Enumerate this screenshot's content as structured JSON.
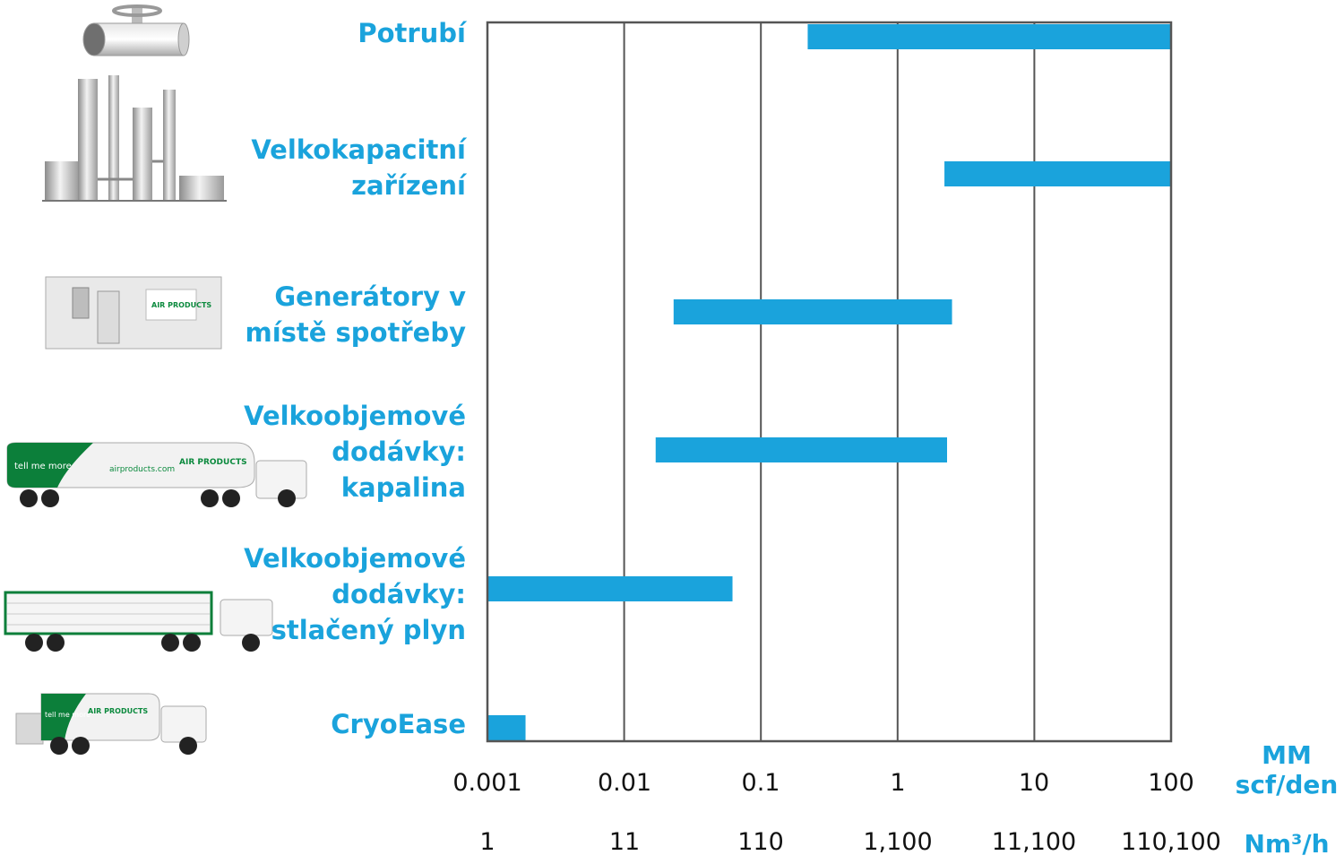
{
  "chart_data": {
    "type": "bar",
    "orientation": "horizontal-range",
    "scale": "log",
    "xlim": [
      0.001,
      100
    ],
    "categories": [
      "Potrubí",
      "Velkokapacitní\nzařízení",
      "Generátory v\nmístě spotřeby",
      "Velkoobjemové\ndodávky:\nkapalina",
      "Velkoobjemové\ndodávky:\nstlačený plyn",
      "CryoEase"
    ],
    "ranges": [
      {
        "category": "Potrubí",
        "start": 0.22,
        "end": 100
      },
      {
        "category": "Velkokapacitní zařízení",
        "start": 2.2,
        "end": 100
      },
      {
        "category": "Generátory v místě spotřeby",
        "start": 0.023,
        "end": 2.5
      },
      {
        "category": "Velkoobjemové dodávky: kapalina",
        "start": 0.017,
        "end": 2.3
      },
      {
        "category": "Velkoobjemové dodávky: stlačený plyn",
        "start": 0.001,
        "end": 0.062
      },
      {
        "category": "CryoEase",
        "start": 0.001,
        "end": 0.0019
      }
    ],
    "ticks_primary": [
      "0.001",
      "0.01",
      "0.1",
      "1",
      "10",
      "100"
    ],
    "ticks_secondary": [
      "1",
      "11",
      "110",
      "1,100",
      "11,100",
      "110,100"
    ],
    "unit_primary": "MM\nscf/den",
    "unit_secondary": "Nm³/h",
    "grid": true
  },
  "colors": {
    "bar": "#1aa3dc",
    "grid": "#555555",
    "label": "#1aa3dc",
    "tick": "#111111"
  },
  "icons": [
    "pipeline-icon",
    "industrial-plant-icon",
    "onsite-generator-container-icon",
    "liquid-tanker-truck-icon",
    "tube-trailer-truck-icon",
    "cryoease-truck-icon"
  ],
  "logos": {
    "tagline": "tell me more",
    "brand": "AIR PRODUCTS",
    "website": "airproducts.com"
  }
}
